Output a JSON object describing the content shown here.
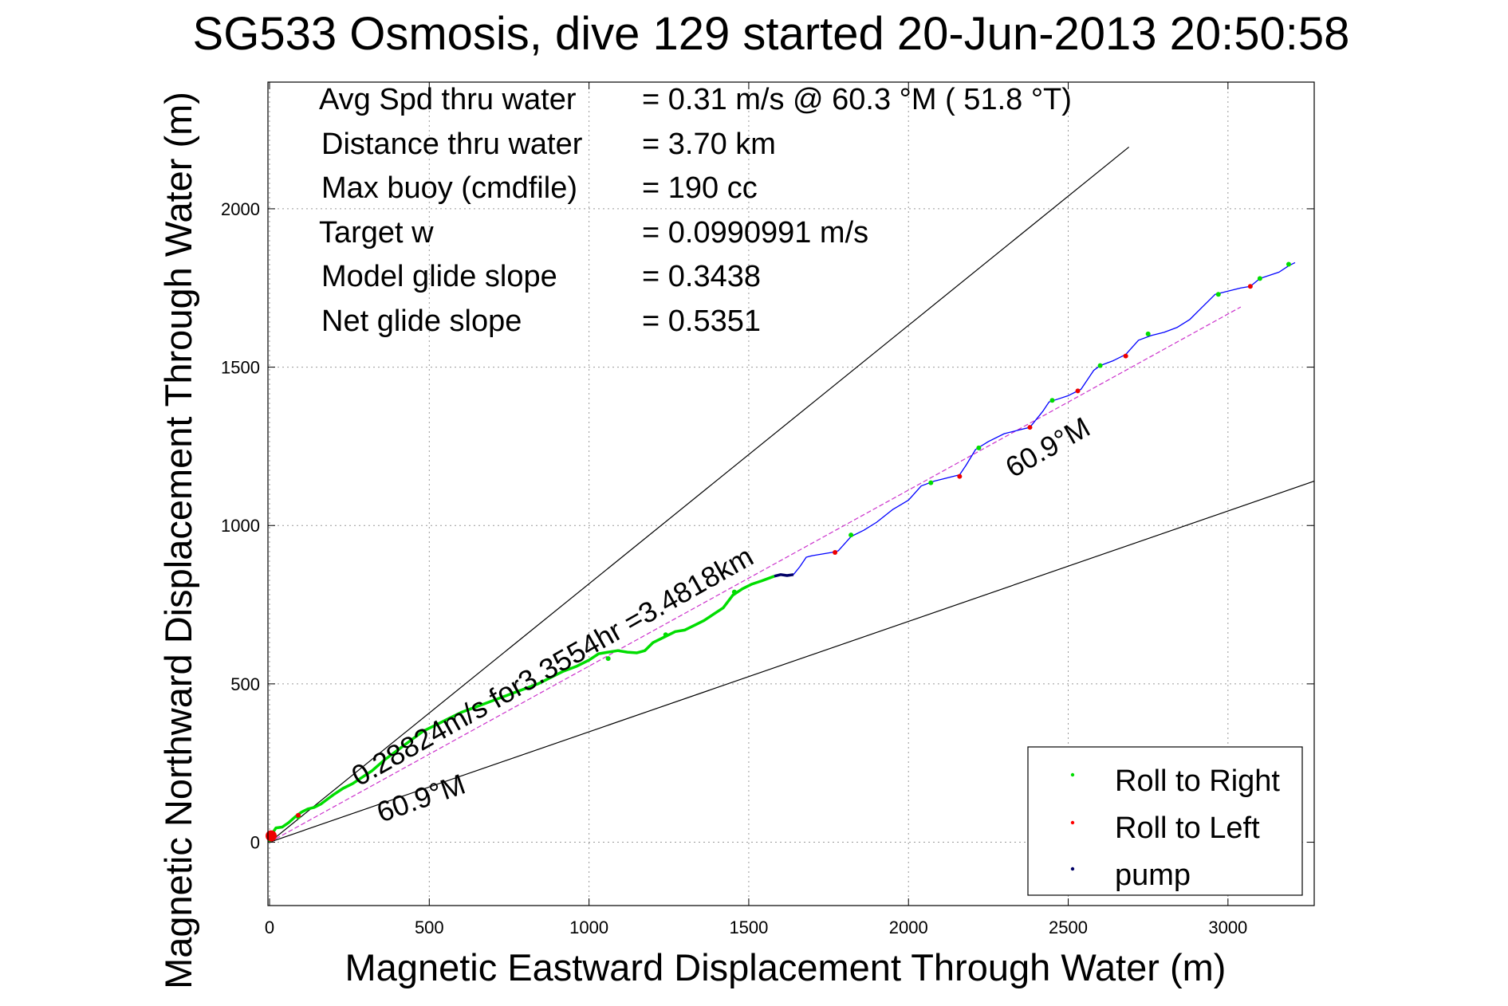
{
  "chart_data": {
    "type": "line",
    "title": "SG533 Osmosis, dive 129 started 20-Jun-2013 20:50:58",
    "xlabel": "Magnetic Eastward Displacement Through Water (m)",
    "ylabel": "Magnetic Northward Displacement Through Water (m)",
    "xlim": [
      -5,
      3270
    ],
    "ylim": [
      -200,
      2400
    ],
    "xticks": [
      0,
      500,
      1000,
      1500,
      2000,
      2500,
      3000
    ],
    "yticks": [
      0,
      500,
      1000,
      1500,
      2000
    ],
    "grid": true,
    "stats": [
      {
        "label": "Avg Spd thru water",
        "value": "=  0.31 m/s @  60.3 °M ( 51.8 °T)"
      },
      {
        "label": "Distance thru water",
        "value": "=  3.70 km"
      },
      {
        "label": "Max buoy (cmdfile)",
        "value": "= 190 cc"
      },
      {
        "label": "Target w",
        "value": "= 0.0990991 m/s"
      },
      {
        "label": "Model glide slope",
        "value": "= 0.3438"
      },
      {
        "label": "Net glide slope",
        "value": "= 0.5351"
      }
    ],
    "annotations": {
      "track_speed": "0.28824m/s for3.3554hr =3.4818km",
      "heading_near": "60.9°M",
      "heading_far": "60.9°M"
    },
    "legend": {
      "position": "bottom-right",
      "entries": [
        {
          "name": "Roll to Right",
          "color": "#00dd00"
        },
        {
          "name": "Roll to Left",
          "color": "#ff0000"
        },
        {
          "name": "pump",
          "color": "#000066"
        }
      ]
    },
    "reference_lines": [
      {
        "name": "upper bound",
        "color": "#000000",
        "x": [
          0,
          2690
        ],
        "y": [
          0,
          2195
        ]
      },
      {
        "name": "lower bound",
        "color": "#000000",
        "x": [
          0,
          3270
        ],
        "y": [
          0,
          1140
        ]
      },
      {
        "name": "net track",
        "color": "#cc33cc",
        "x": [
          0,
          3040
        ],
        "y": [
          0,
          1690
        ]
      }
    ],
    "series": [
      {
        "name": "Roll to Right",
        "color": "#00dd00",
        "x": [
          0,
          5,
          10,
          20,
          40,
          60,
          80,
          100,
          120,
          140,
          160,
          180,
          200,
          230,
          260,
          290,
          320,
          360,
          400,
          440,
          480,
          520,
          560,
          600,
          640,
          680,
          720,
          760,
          800,
          840,
          880,
          920,
          960,
          1000,
          1030,
          1060,
          1090,
          1120,
          1150,
          1175,
          1200,
          1240,
          1270,
          1300,
          1330,
          1360,
          1390,
          1420,
          1450,
          1480,
          1510,
          1540,
          1580
        ],
        "y": [
          0,
          15,
          30,
          45,
          48,
          62,
          80,
          95,
          105,
          110,
          120,
          135,
          150,
          170,
          185,
          205,
          225,
          260,
          290,
          320,
          350,
          370,
          390,
          410,
          425,
          440,
          455,
          470,
          485,
          500,
          520,
          540,
          555,
          575,
          595,
          600,
          605,
          600,
          598,
          605,
          630,
          650,
          665,
          670,
          685,
          700,
          720,
          740,
          780,
          800,
          815,
          825,
          840
        ]
      },
      {
        "name": "pump",
        "color": "#000066",
        "x": [
          1580,
          1600,
          1620,
          1640
        ],
        "y": [
          840,
          845,
          842,
          845
        ]
      },
      {
        "name": "flight track",
        "color": "#0000ff",
        "x": [
          1640,
          1660,
          1680,
          1700,
          1730,
          1760,
          1780,
          1820,
          1860,
          1900,
          1950,
          2000,
          2040,
          2080,
          2120,
          2160,
          2180,
          2210,
          2250,
          2300,
          2340,
          2380,
          2420,
          2440,
          2470,
          2500,
          2540,
          2580,
          2600,
          2640,
          2680,
          2720,
          2760,
          2800,
          2840,
          2880,
          2920,
          2960,
          3000,
          3040,
          3070,
          3100,
          3130,
          3160,
          3190,
          3210
        ],
        "y": [
          845,
          870,
          900,
          905,
          910,
          915,
          920,
          965,
          985,
          1010,
          1050,
          1080,
          1125,
          1140,
          1150,
          1160,
          1190,
          1240,
          1265,
          1290,
          1300,
          1310,
          1360,
          1390,
          1400,
          1410,
          1430,
          1490,
          1505,
          1520,
          1540,
          1585,
          1600,
          1610,
          1625,
          1650,
          1690,
          1730,
          1740,
          1750,
          1755,
          1780,
          1790,
          1800,
          1820,
          1830
        ]
      }
    ],
    "roll_right_points": {
      "x": [
        90,
        1060,
        1240,
        1455,
        1820,
        2070,
        2220,
        2450,
        2600,
        2750,
        2970,
        3100,
        3190
      ],
      "y": [
        80,
        580,
        655,
        790,
        970,
        1135,
        1245,
        1395,
        1505,
        1605,
        1730,
        1780,
        1825
      ]
    },
    "roll_left_points": {
      "x": [
        5,
        90,
        1770,
        2160,
        2380,
        2530,
        2680,
        3070
      ],
      "y": [
        20,
        85,
        915,
        1155,
        1310,
        1425,
        1535,
        1755
      ]
    }
  }
}
